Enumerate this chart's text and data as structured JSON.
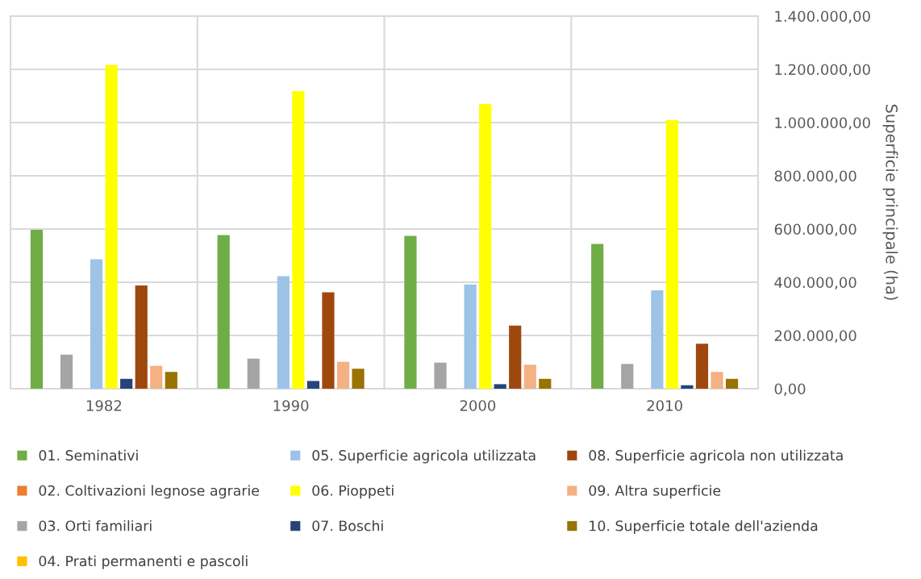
{
  "chart_data": {
    "type": "bar",
    "ylabel": "Superficie principale (ha)",
    "categories": [
      "1982",
      "1990",
      "2000",
      "2010"
    ],
    "series": [
      {
        "name": "01. Seminativi",
        "color": "#70ad47",
        "values": [
          597000,
          577000,
          574000,
          544000
        ]
      },
      {
        "name": "02. Coltivazioni legnose agrarie",
        "color": "#ed7d31",
        "values": [
          null,
          null,
          null,
          null
        ]
      },
      {
        "name": "03. Orti familiari",
        "color": "#a5a5a5",
        "values": [
          128000,
          113000,
          98000,
          93000
        ]
      },
      {
        "name": "04. Prati permanenti e pascoli",
        "color": "#ffc000",
        "values": [
          null,
          null,
          null,
          null
        ]
      },
      {
        "name": "05. Superficie agricola utilizzata",
        "color": "#9dc3e6",
        "values": [
          486000,
          423000,
          392000,
          370000
        ]
      },
      {
        "name": "06. Pioppeti",
        "color": "#ffff00",
        "values": [
          1217000,
          1118000,
          1070000,
          1009000
        ]
      },
      {
        "name": "07. Boschi",
        "color": "#264478",
        "values": [
          37000,
          29000,
          17000,
          13000
        ]
      },
      {
        "name": "08. Superficie agricola non utilizzata",
        "color": "#9e480e",
        "values": [
          388000,
          362000,
          237000,
          169000
        ]
      },
      {
        "name": "09. Altra superficie",
        "color": "#f4b183",
        "values": [
          86000,
          101000,
          90000,
          63000
        ]
      },
      {
        "name": "10. Superficie totale dell'azienda",
        "color": "#997300",
        "values": [
          63000,
          75000,
          37000,
          37000
        ]
      }
    ],
    "ylim": [
      0,
      1400000
    ],
    "yticks": [
      {
        "value": 0,
        "label": "0,00"
      },
      {
        "value": 200000,
        "label": "200.000,00"
      },
      {
        "value": 400000,
        "label": "400.000,00"
      },
      {
        "value": 600000,
        "label": "600.000,00"
      },
      {
        "value": 800000,
        "label": "800.000,00"
      },
      {
        "value": 1000000,
        "label": "1.000.000,00"
      },
      {
        "value": 1200000,
        "label": "1.200.000,00"
      },
      {
        "value": 1400000,
        "label": "1.400.000,00"
      }
    ],
    "grid": true,
    "legend": "bottom"
  }
}
